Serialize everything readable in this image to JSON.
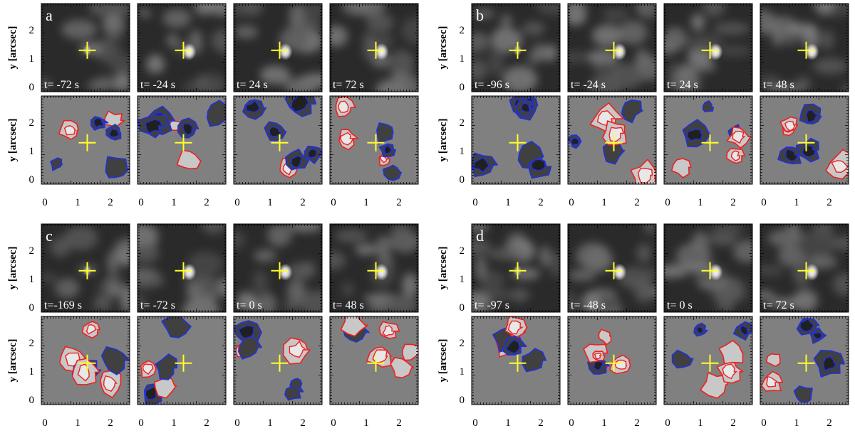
{
  "figure": {
    "y_axis_label": "y [arcsec]",
    "y_ticks": [
      "0",
      "1",
      "2"
    ],
    "x_ticks": [
      "0",
      "1",
      "2"
    ],
    "panels": [
      {
        "letter": "a",
        "times": [
          "t= -72 s",
          "t= -24 s",
          "t=  24 s",
          "t=  72 s"
        ]
      },
      {
        "letter": "b",
        "times": [
          "t= -96 s",
          "t= -24 s",
          "t=  24 s",
          "t=  48 s"
        ]
      },
      {
        "letter": "c",
        "times": [
          "t=-169 s",
          "t= -72 s",
          "t=   0 s",
          "t=  48 s"
        ]
      },
      {
        "letter": "d",
        "times": [
          "t= -97 s",
          "t= -48 s",
          "t=   0 s",
          "t=  72 s"
        ]
      }
    ]
  },
  "colors": {
    "marker": "#ffff2a",
    "positive_contour": "#ee2020",
    "negative_contour": "#2030e0",
    "magnetogram_background": "#808080",
    "intensity_background": "#2a2a2a"
  }
}
